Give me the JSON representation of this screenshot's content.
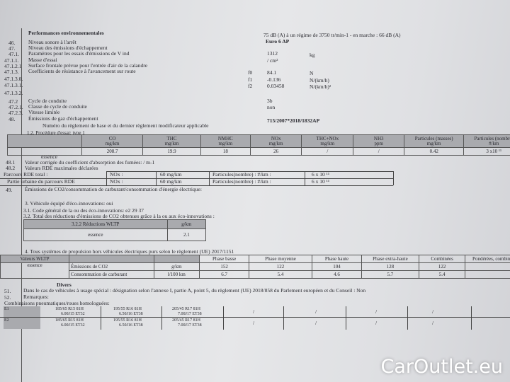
{
  "title": "Performances environnementales",
  "left_items": [
    {
      "num": "46.",
      "label": "Niveau sonore à l'arrêt"
    },
    {
      "num": "47.",
      "label": "Niveau des émissions d'échappement"
    },
    {
      "num": "47.1.",
      "label": "Paramètres pour les essais d'émissions de V ind"
    },
    {
      "num": "47.1.1.",
      "label": "Masse d'essai"
    },
    {
      "num": "47.1.2.1",
      "label": "Surface frontale prévue pour l'entrée d'air de la calandre"
    },
    {
      "num": "47.1.3.",
      "label": "Coefficients de résistance à l'avancement sur route"
    },
    {
      "num": "47.1.3.0.",
      "label": ""
    },
    {
      "num": "47.1.3.1.",
      "label": ""
    },
    {
      "num": "47.1.3.2.",
      "label": ""
    },
    {
      "num": "47.2",
      "label": "Cycle de conduite"
    },
    {
      "num": "47.2.1.",
      "label": "Classe de cycle de conduite"
    },
    {
      "num": "47.2.3.",
      "label": "Vitesse limitée"
    },
    {
      "num": "48.",
      "label": "Émissions de gaz d'échappement"
    }
  ],
  "item48_sub": "Numéro du règlement de base et du dernier règlement modificateur applicable",
  "values": {
    "noise": "75 dB (A)   à un régime de 3750 tr/min-1 - en marche :   66 dB (A)",
    "euro": "Euro 6 AP",
    "mass": "1312",
    "mass_unit": "kg",
    "area": "/ cm²",
    "f0": "f0",
    "f0_val": "84.1",
    "f0_unit": "N",
    "f1": "f1",
    "f1_val": "-0.136",
    "f1_unit": "N/(km/h)",
    "f2": "f2",
    "f2_val": "0.03458",
    "f2_unit": "N/(km/h)²",
    "cycle": "3b",
    "cycle_class": "non",
    "regulation": "715/2007*2018/1832AP"
  },
  "type1": {
    "caption": "1.2. Procédure d'essai: type 1",
    "headers": [
      [
        "",
        ""
      ],
      [
        "CO",
        "mg/km"
      ],
      [
        "THC",
        "mg/km"
      ],
      [
        "NMHC",
        "mg/km"
      ],
      [
        "NOx",
        "mg/km"
      ],
      [
        "THC+NOx",
        "mg/km"
      ],
      [
        "NH3",
        "ppm"
      ],
      [
        "Particules (masses)",
        "mg/km"
      ],
      [
        "Particules (nombre)",
        "#/km"
      ]
    ],
    "row": [
      "essence",
      "208.7",
      "19.9",
      "18",
      "26",
      "/",
      "/",
      "0.42",
      "3 x10 ¹¹"
    ]
  },
  "l481": {
    "num": "48.1",
    "label": "Valeur corrigée du coefficient d'absorption des fumées: / m-1"
  },
  "l482": {
    "num": "48.2",
    "label": "Valeurs RDE maximales déclarées"
  },
  "rde": [
    [
      "Parcours RDE total :",
      "NOx :",
      "60 mg/km",
      "Particules(nombre) : #/km :",
      "6 x 10 ¹¹"
    ],
    [
      "Partie urbaine du parcours RDE",
      "NOx :",
      "60 mg/km",
      "Particules(nombre) : #/km :",
      "6 x 10 ¹¹"
    ]
  ],
  "l49": {
    "num": "49.",
    "label": "Émissions de CO2/consommation de carburant/consommation d'énergie électrique:"
  },
  "s3": "3. Véhicule équipé d'éco-innovations: oui",
  "s31": "3.1. Code général de la ou des éco-innovations: e2 29 37",
  "s32": "3.2. Total des réductions d'émissions de CO2 obtenues grâce à la ou aux éco-innovations :",
  "eco": {
    "headers": [
      "3.2.2 Réductions WLTP",
      "g/km"
    ],
    "row": [
      "essence",
      "2.1"
    ]
  },
  "s4": "4. Tous systèmes de propulsion hors véhicules électriques purs selon le règlement (UE) 2017/1151",
  "wltp": {
    "headers": [
      "Valeurs WLTP",
      "",
      "",
      "Phase basse",
      "Phase moyenne",
      "Phase haute",
      "Phase extra-haute",
      "Combinées",
      "Pondérées, combinées"
    ],
    "fuel": "essence",
    "rows": [
      [
        "Émissions de CO2",
        "g/km",
        "152",
        "122",
        "104",
        "128",
        "122",
        ""
      ],
      [
        "Consommation de carburant",
        "l/100 km",
        "6.7",
        "5.4",
        "4.6",
        "5.7",
        "5.4",
        ""
      ]
    ]
  },
  "divers": "Divers",
  "l51": {
    "num": "51.",
    "label": "Dans le cas de véhicules à usage spécial : désignation selon l'annexe I, partie A, point 5, du règlement (UE) 2018/858 du Parlement européen et du Conseil : Non"
  },
  "l52": {
    "num": "52.",
    "label": "Remarques:"
  },
  "tyres_title": "Combinaisons pneumatiques/roues homologuées:",
  "tyres": [
    {
      "axle": "E1",
      "c": [
        [
          "185/65 R15 81H",
          "6.00J15 ET32"
        ],
        [
          "195/55 R16 81H",
          "6.50J16 ET38"
        ],
        [
          "205/45 R17 81H",
          "7.00J17 ET38"
        ]
      ]
    },
    {
      "axle": "E2",
      "c": [
        [
          "185/65 R15 81H",
          "6.00J15 ET32"
        ],
        [
          "195/55 R16 81H",
          "6.50J16 ET38"
        ],
        [
          "205/45 R17 81H",
          "7.00J17 ET38"
        ]
      ]
    }
  ],
  "slash": "/",
  "watermark": "CarOutlet.eu"
}
